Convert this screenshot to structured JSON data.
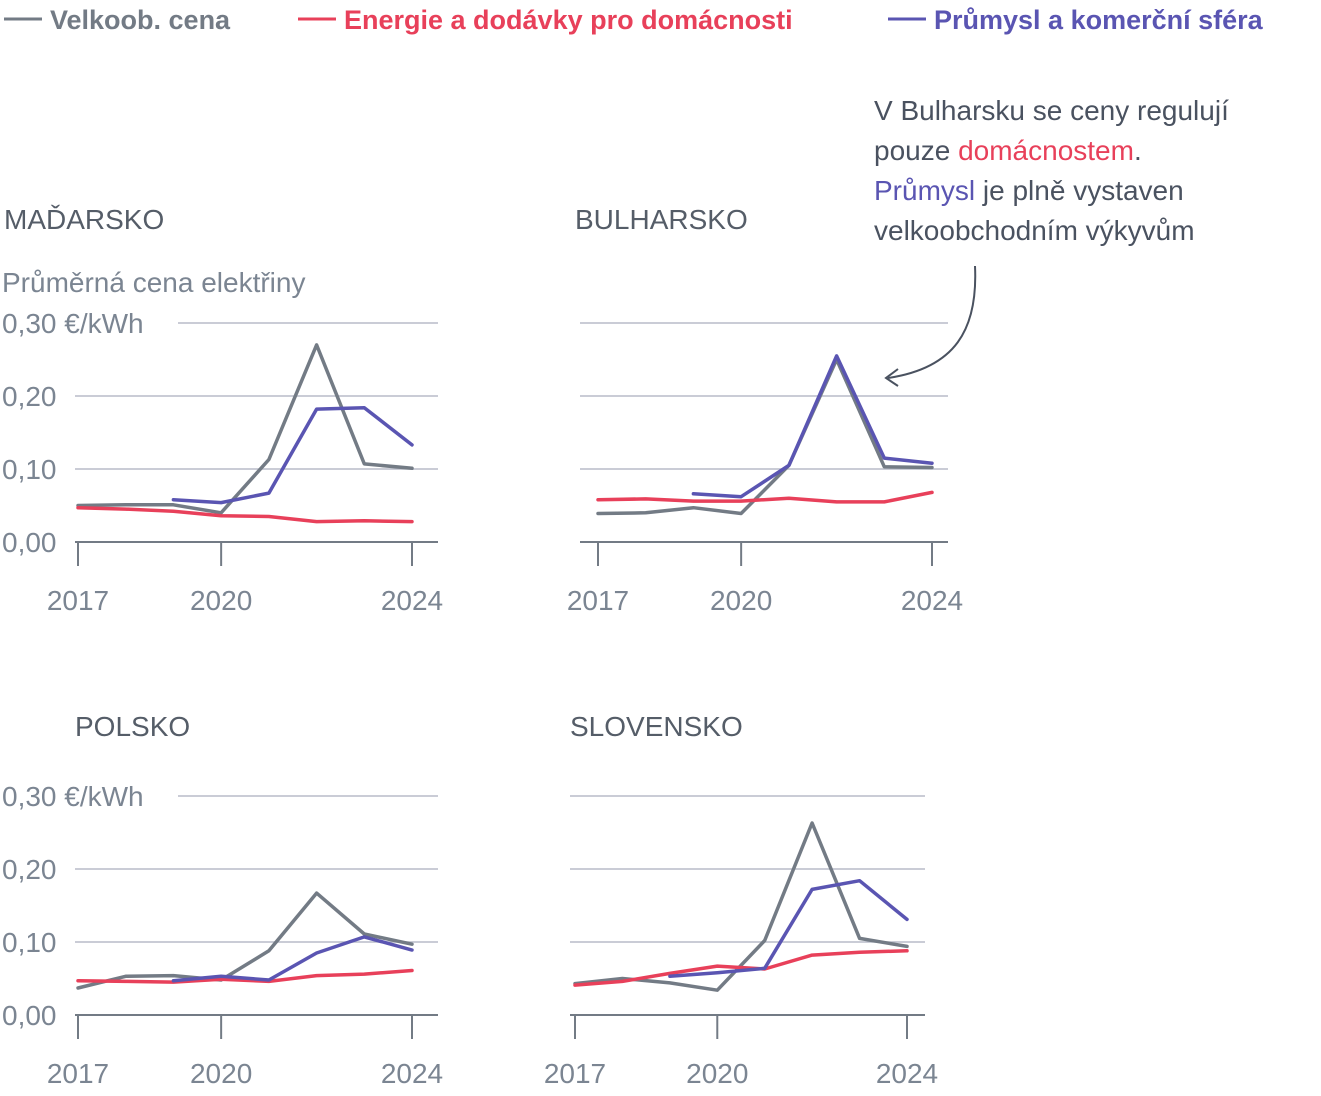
{
  "legend": [
    {
      "label": "Velkoob. cena",
      "color": "#737b85"
    },
    {
      "label": "Energie a dodávky pro domácnosti",
      "color": "#e8405a"
    },
    {
      "label": "Průmysl a komerční sféra",
      "color": "#5a55b2"
    }
  ],
  "annotation": {
    "line1": "V Bulharsku se ceny regulují",
    "line2_prefix": "pouze ",
    "line2_highlight": "domácnostem",
    "line2_suffix": ".",
    "line3_highlight": "Průmysl",
    "line3_suffix": " je plně vystaven",
    "line4": "velkoobchodním výkyvům"
  },
  "chart_data": [
    {
      "type": "line",
      "title": "MAĎARSKO",
      "subtitle": "Průměrná cena elektřiny",
      "unit_label": "0,30 €/kWh",
      "y_tick_labels": [
        "0,00",
        "0,10",
        "0,20",
        "0,30 €/kWh"
      ],
      "y_ticks": [
        0,
        0.1,
        0.2,
        0.3
      ],
      "x_tick_labels": [
        "2017",
        "2020",
        "2024"
      ],
      "x_ticks": [
        2017,
        2020,
        2024
      ],
      "ylim": [
        0,
        0.3
      ],
      "series": [
        {
          "name": "Velkoob. cena",
          "color": "#737b85",
          "x": [
            2017,
            2018,
            2019,
            2020,
            2021,
            2022,
            2023,
            2024
          ],
          "values": [
            0.05,
            0.051,
            0.051,
            0.04,
            0.113,
            0.27,
            0.107,
            0.101
          ]
        },
        {
          "name": "Energie a dodávky pro domácnosti",
          "color": "#e8405a",
          "x": [
            2017,
            2018,
            2019,
            2020,
            2021,
            2022,
            2023,
            2024
          ],
          "values": [
            0.047,
            0.045,
            0.042,
            0.036,
            0.035,
            0.028,
            0.029,
            0.028
          ]
        },
        {
          "name": "Průmysl a komerční sféra",
          "color": "#5a55b2",
          "x": [
            2019,
            2020,
            2021,
            2022,
            2023,
            2024
          ],
          "values": [
            0.058,
            0.054,
            0.067,
            0.182,
            0.184,
            0.133
          ]
        }
      ]
    },
    {
      "type": "line",
      "title": "BULHARSKO",
      "y_ticks": [
        0,
        0.1,
        0.2,
        0.3
      ],
      "x_tick_labels": [
        "2017",
        "2020",
        "2024"
      ],
      "x_ticks": [
        2017,
        2020,
        2024
      ],
      "ylim": [
        0,
        0.3
      ],
      "series": [
        {
          "name": "Velkoob. cena",
          "color": "#737b85",
          "x": [
            2017,
            2018,
            2019,
            2020,
            2021,
            2022,
            2023,
            2024
          ],
          "values": [
            0.039,
            0.04,
            0.047,
            0.039,
            0.105,
            0.25,
            0.103,
            0.102
          ]
        },
        {
          "name": "Energie a dodávky pro domácnosti",
          "color": "#e8405a",
          "x": [
            2017,
            2018,
            2019,
            2020,
            2021,
            2022,
            2023,
            2024
          ],
          "values": [
            0.058,
            0.059,
            0.056,
            0.056,
            0.06,
            0.055,
            0.055,
            0.068
          ]
        },
        {
          "name": "Průmysl a komerční sféra",
          "color": "#5a55b2",
          "x": [
            2019,
            2020,
            2021,
            2022,
            2023,
            2024
          ],
          "values": [
            0.066,
            0.062,
            0.105,
            0.255,
            0.115,
            0.108
          ]
        }
      ]
    },
    {
      "type": "line",
      "title": "POLSKO",
      "unit_label": "0,30 €/kWh",
      "y_tick_labels": [
        "0,00",
        "0,10",
        "0,20",
        "0,30 €/kWh"
      ],
      "y_ticks": [
        0,
        0.1,
        0.2,
        0.3
      ],
      "x_tick_labels": [
        "2017",
        "2020",
        "2024"
      ],
      "x_ticks": [
        2017,
        2020,
        2024
      ],
      "ylim": [
        0,
        0.3
      ],
      "series": [
        {
          "name": "Velkoob. cena",
          "color": "#737b85",
          "x": [
            2017,
            2018,
            2019,
            2020,
            2021,
            2022,
            2023,
            2024
          ],
          "values": [
            0.037,
            0.053,
            0.054,
            0.048,
            0.088,
            0.167,
            0.111,
            0.097
          ]
        },
        {
          "name": "Energie a dodávky pro domácnosti",
          "color": "#e8405a",
          "x": [
            2017,
            2018,
            2019,
            2020,
            2021,
            2022,
            2023,
            2024
          ],
          "values": [
            0.047,
            0.046,
            0.045,
            0.049,
            0.046,
            0.054,
            0.056,
            0.061
          ]
        },
        {
          "name": "Průmysl a komerční sféra",
          "color": "#5a55b2",
          "x": [
            2019,
            2020,
            2021,
            2022,
            2023,
            2024
          ],
          "values": [
            0.047,
            0.053,
            0.048,
            0.085,
            0.107,
            0.089
          ]
        }
      ]
    },
    {
      "type": "line",
      "title": "SLOVENSKO",
      "y_ticks": [
        0,
        0.1,
        0.2,
        0.3
      ],
      "x_tick_labels": [
        "2017",
        "2020",
        "2024"
      ],
      "x_ticks": [
        2017,
        2020,
        2024
      ],
      "ylim": [
        0,
        0.3
      ],
      "series": [
        {
          "name": "Velkoob. cena",
          "color": "#737b85",
          "x": [
            2017,
            2018,
            2019,
            2020,
            2021,
            2022,
            2023,
            2024
          ],
          "values": [
            0.043,
            0.05,
            0.044,
            0.034,
            0.102,
            0.263,
            0.105,
            0.094
          ]
        },
        {
          "name": "Energie a dodávky pro domácnosti",
          "color": "#e8405a",
          "x": [
            2017,
            2018,
            2019,
            2020,
            2021,
            2022,
            2023,
            2024
          ],
          "values": [
            0.041,
            0.046,
            0.057,
            0.067,
            0.063,
            0.082,
            0.086,
            0.088
          ]
        },
        {
          "name": "Průmysl a komerční sféra",
          "color": "#5a55b2",
          "x": [
            2019,
            2020,
            2021,
            2022,
            2023,
            2024
          ],
          "values": [
            0.053,
            0.058,
            0.064,
            0.172,
            0.184,
            0.131
          ]
        }
      ]
    }
  ]
}
